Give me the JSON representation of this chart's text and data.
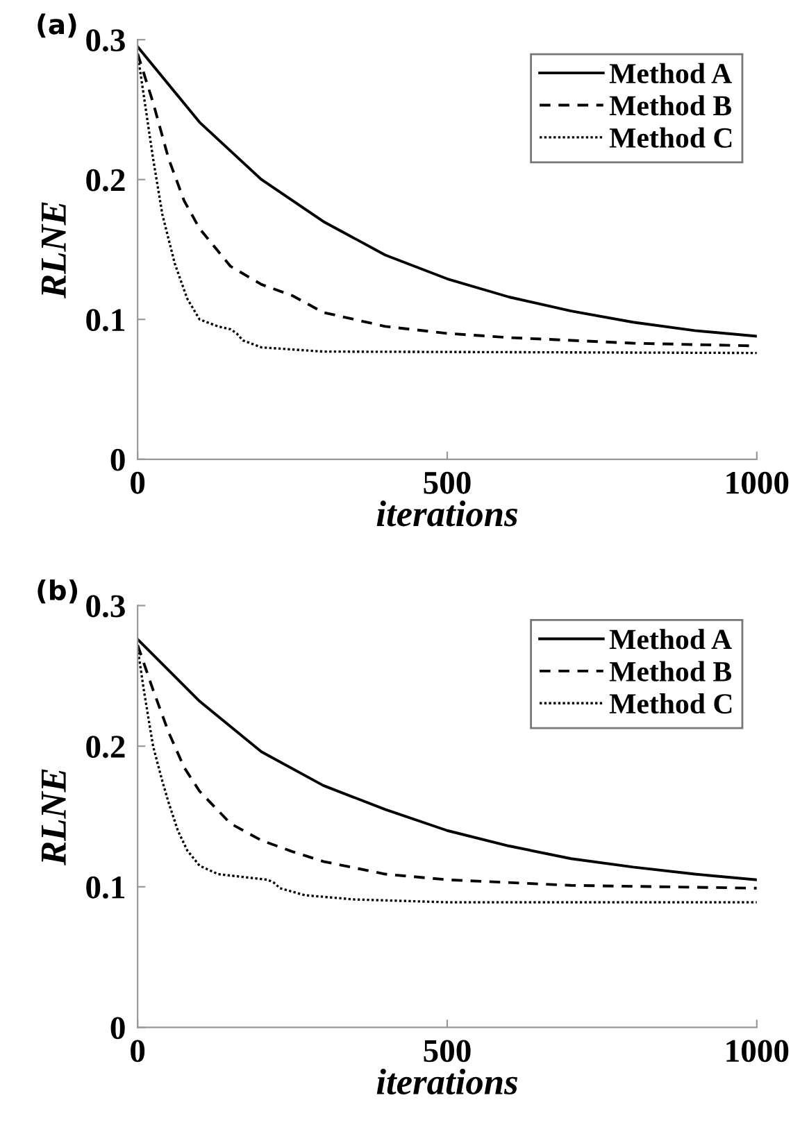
{
  "chart_data": [
    {
      "type": "line",
      "xlabel": "iterations",
      "ylabel": "RLNE",
      "annotations": [
        "(a)"
      ],
      "xlim": [
        0,
        1000
      ],
      "ylim": [
        0,
        0.3
      ],
      "xticks": [
        0,
        500,
        1000
      ],
      "yticks": [
        0,
        0.1,
        0.2,
        0.3
      ],
      "grid": false,
      "legend": "top right",
      "series": [
        {
          "name": "Method A",
          "color": "#000000",
          "line_style": "solid",
          "x": [
            0,
            100,
            200,
            300,
            400,
            500,
            600,
            700,
            800,
            900,
            1000
          ],
          "values": [
            0.295,
            0.241,
            0.2,
            0.17,
            0.146,
            0.129,
            0.116,
            0.106,
            0.098,
            0.092,
            0.088
          ]
        },
        {
          "name": "Method B",
          "color": "#000000",
          "line_style": "dashed",
          "x": [
            0,
            25,
            50,
            75,
            100,
            150,
            200,
            250,
            300,
            400,
            500,
            600,
            800,
            1000
          ],
          "values": [
            0.29,
            0.255,
            0.215,
            0.185,
            0.165,
            0.138,
            0.125,
            0.117,
            0.105,
            0.095,
            0.09,
            0.087,
            0.083,
            0.081
          ]
        },
        {
          "name": "Method C",
          "color": "#000000",
          "line_style": "dotted",
          "x": [
            0,
            10,
            25,
            40,
            60,
            80,
            100,
            130,
            150,
            160,
            170,
            200,
            300,
            1000
          ],
          "values": [
            0.29,
            0.26,
            0.215,
            0.175,
            0.14,
            0.115,
            0.1,
            0.095,
            0.093,
            0.09,
            0.085,
            0.08,
            0.077,
            0.076
          ]
        }
      ]
    },
    {
      "type": "line",
      "xlabel": "iterations",
      "ylabel": "RLNE",
      "annotations": [
        "(b)"
      ],
      "xlim": [
        0,
        1000
      ],
      "ylim": [
        0,
        0.3
      ],
      "xticks": [
        0,
        500,
        1000
      ],
      "yticks": [
        0,
        0.1,
        0.2,
        0.3
      ],
      "grid": false,
      "legend": "top right",
      "series": [
        {
          "name": "Method A",
          "color": "#000000",
          "line_style": "solid",
          "x": [
            0,
            100,
            200,
            300,
            400,
            500,
            600,
            700,
            800,
            900,
            1000
          ],
          "values": [
            0.276,
            0.232,
            0.196,
            0.172,
            0.155,
            0.14,
            0.129,
            0.12,
            0.114,
            0.109,
            0.105
          ]
        },
        {
          "name": "Method B",
          "color": "#000000",
          "line_style": "dashed",
          "x": [
            0,
            25,
            50,
            75,
            100,
            150,
            200,
            250,
            300,
            400,
            500,
            700,
            1000
          ],
          "values": [
            0.272,
            0.24,
            0.21,
            0.185,
            0.168,
            0.145,
            0.133,
            0.125,
            0.118,
            0.109,
            0.105,
            0.101,
            0.099
          ]
        },
        {
          "name": "Method C",
          "color": "#000000",
          "line_style": "dotted",
          "x": [
            0,
            10,
            25,
            40,
            50,
            65,
            80,
            100,
            130,
            170,
            210,
            220,
            230,
            270,
            350,
            500,
            1000
          ],
          "values": [
            0.27,
            0.24,
            0.2,
            0.175,
            0.16,
            0.14,
            0.126,
            0.115,
            0.109,
            0.107,
            0.105,
            0.103,
            0.099,
            0.094,
            0.091,
            0.089,
            0.089
          ]
        }
      ]
    }
  ]
}
